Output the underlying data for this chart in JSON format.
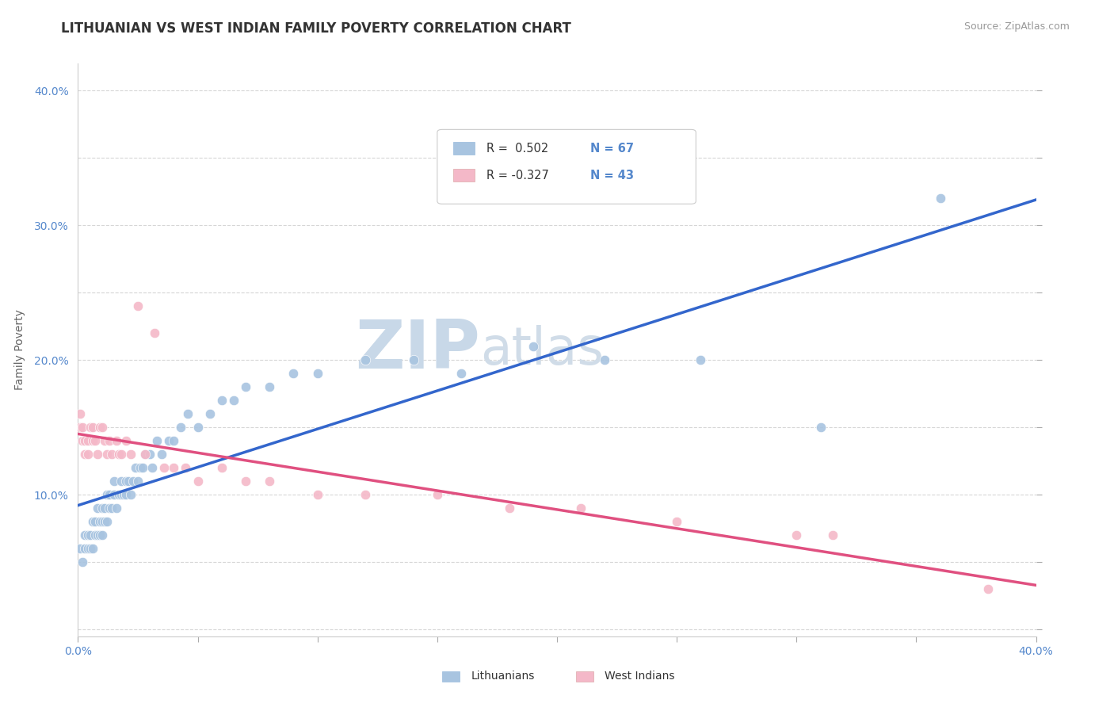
{
  "title": "LITHUANIAN VS WEST INDIAN FAMILY POVERTY CORRELATION CHART",
  "source": "Source: ZipAtlas.com",
  "ylabel": "Family Poverty",
  "watermark_zip": "ZIP",
  "watermark_atlas": "atlas",
  "xlim": [
    0.0,
    0.4
  ],
  "ylim": [
    -0.005,
    0.42
  ],
  "xticks": [
    0.0,
    0.05,
    0.1,
    0.15,
    0.2,
    0.25,
    0.3,
    0.35,
    0.4
  ],
  "yticks": [
    0.0,
    0.05,
    0.1,
    0.15,
    0.2,
    0.25,
    0.3,
    0.35,
    0.4
  ],
  "blue_color": "#a8c4e0",
  "pink_color": "#f4b8c8",
  "blue_line_color": "#3366cc",
  "pink_line_color": "#e05080",
  "legend_blue_R": "R =  0.502",
  "legend_blue_N": "N = 67",
  "legend_pink_R": "R = -0.327",
  "legend_pink_N": "N = 43",
  "blue_scatter_x": [
    0.001,
    0.002,
    0.003,
    0.003,
    0.004,
    0.004,
    0.005,
    0.005,
    0.006,
    0.006,
    0.007,
    0.007,
    0.008,
    0.008,
    0.009,
    0.009,
    0.01,
    0.01,
    0.01,
    0.011,
    0.011,
    0.012,
    0.012,
    0.013,
    0.013,
    0.014,
    0.015,
    0.015,
    0.016,
    0.017,
    0.018,
    0.018,
    0.019,
    0.02,
    0.02,
    0.021,
    0.022,
    0.023,
    0.024,
    0.025,
    0.026,
    0.027,
    0.028,
    0.03,
    0.031,
    0.033,
    0.035,
    0.038,
    0.04,
    0.043,
    0.046,
    0.05,
    0.055,
    0.06,
    0.065,
    0.07,
    0.08,
    0.09,
    0.1,
    0.12,
    0.14,
    0.16,
    0.19,
    0.22,
    0.26,
    0.31,
    0.36
  ],
  "blue_scatter_y": [
    0.06,
    0.05,
    0.06,
    0.07,
    0.06,
    0.07,
    0.06,
    0.07,
    0.06,
    0.08,
    0.07,
    0.08,
    0.07,
    0.09,
    0.07,
    0.08,
    0.07,
    0.08,
    0.09,
    0.08,
    0.09,
    0.08,
    0.1,
    0.09,
    0.1,
    0.09,
    0.1,
    0.11,
    0.09,
    0.1,
    0.1,
    0.11,
    0.1,
    0.1,
    0.11,
    0.11,
    0.1,
    0.11,
    0.12,
    0.11,
    0.12,
    0.12,
    0.13,
    0.13,
    0.12,
    0.14,
    0.13,
    0.14,
    0.14,
    0.15,
    0.16,
    0.15,
    0.16,
    0.17,
    0.17,
    0.18,
    0.18,
    0.19,
    0.19,
    0.2,
    0.2,
    0.19,
    0.21,
    0.2,
    0.2,
    0.15,
    0.32
  ],
  "pink_scatter_x": [
    0.001,
    0.001,
    0.002,
    0.002,
    0.003,
    0.003,
    0.004,
    0.004,
    0.005,
    0.006,
    0.006,
    0.007,
    0.008,
    0.009,
    0.01,
    0.011,
    0.012,
    0.013,
    0.014,
    0.016,
    0.017,
    0.018,
    0.02,
    0.022,
    0.025,
    0.028,
    0.032,
    0.036,
    0.04,
    0.045,
    0.05,
    0.06,
    0.07,
    0.08,
    0.1,
    0.12,
    0.15,
    0.18,
    0.21,
    0.25,
    0.3,
    0.315,
    0.38
  ],
  "pink_scatter_y": [
    0.15,
    0.16,
    0.14,
    0.15,
    0.13,
    0.14,
    0.13,
    0.14,
    0.15,
    0.14,
    0.15,
    0.14,
    0.13,
    0.15,
    0.15,
    0.14,
    0.13,
    0.14,
    0.13,
    0.14,
    0.13,
    0.13,
    0.14,
    0.13,
    0.24,
    0.13,
    0.22,
    0.12,
    0.12,
    0.12,
    0.11,
    0.12,
    0.11,
    0.11,
    0.1,
    0.1,
    0.1,
    0.09,
    0.09,
    0.08,
    0.07,
    0.07,
    0.03
  ],
  "title_fontsize": 12,
  "axis_label_fontsize": 10,
  "tick_fontsize": 10,
  "source_fontsize": 9,
  "background_color": "#ffffff",
  "grid_color": "#cccccc",
  "watermark_zip_color": "#c8d8e8",
  "watermark_atlas_color": "#d0dce8",
  "watermark_fontsize": 62
}
